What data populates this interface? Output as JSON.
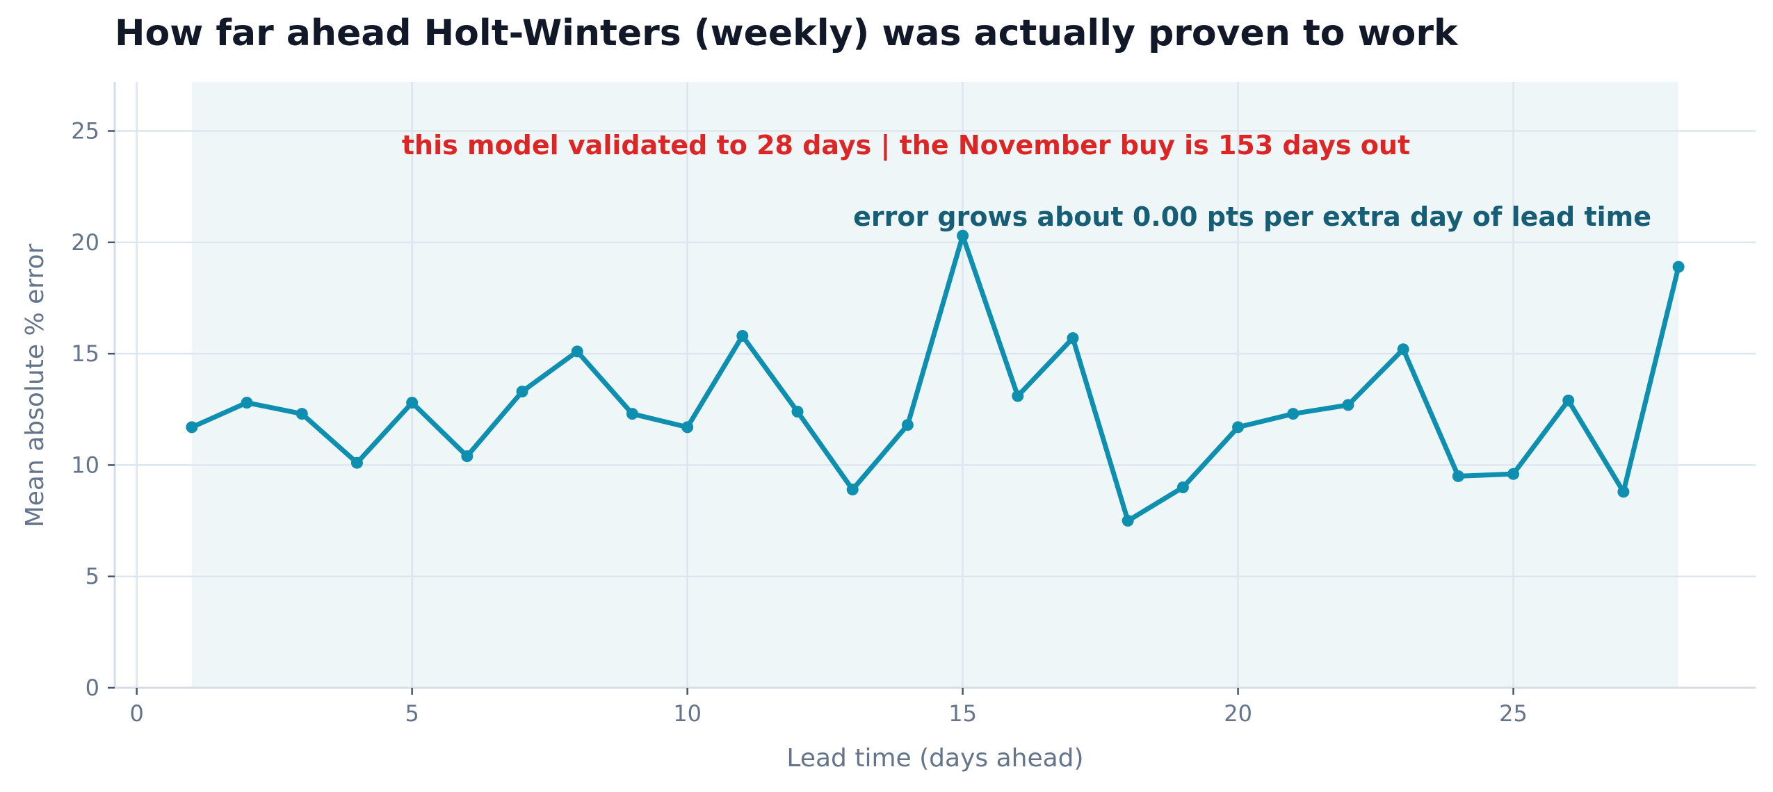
{
  "chart_data": {
    "type": "line",
    "title": "How far ahead Holt-Winters (weekly) was actually proven to work",
    "xlabel": "Lead time (days ahead)",
    "ylabel": "Mean absolute % error",
    "xlim": [
      -0.4,
      29.4
    ],
    "ylim": [
      0,
      27.2
    ],
    "x_ticks": [
      0,
      5,
      10,
      15,
      20,
      25
    ],
    "y_ticks": [
      0,
      5,
      10,
      15,
      20,
      25
    ],
    "grid": true,
    "shaded_range": [
      1,
      28
    ],
    "series": [
      {
        "x": [
          1,
          2,
          3,
          4,
          5,
          6,
          7,
          8,
          9,
          10,
          11,
          12,
          13,
          14,
          15,
          16,
          17,
          18,
          19,
          20,
          21,
          22,
          23,
          24,
          25,
          26,
          27,
          28
        ],
        "values": [
          11.7,
          12.8,
          12.3,
          10.1,
          12.8,
          10.4,
          13.3,
          15.1,
          12.3,
          11.7,
          15.8,
          12.4,
          8.9,
          11.8,
          20.3,
          13.1,
          15.7,
          7.5,
          9.0,
          11.7,
          12.3,
          12.7,
          15.2,
          9.5,
          9.6,
          12.9,
          8.8,
          18.9
        ]
      }
    ],
    "annotations": [
      {
        "text": "this model validated to 28 days  |  the November buy is 153 days out",
        "color": "#dc2626"
      },
      {
        "text": "error grows about 0.00 pts per extra day of lead time",
        "color": "#155e75"
      }
    ],
    "colors": {
      "line": "#0e8fb0",
      "shade": "#eef6f8",
      "grid": "#dde5ee",
      "axis": "#d5dde6",
      "tick_text": "#64748b"
    }
  }
}
